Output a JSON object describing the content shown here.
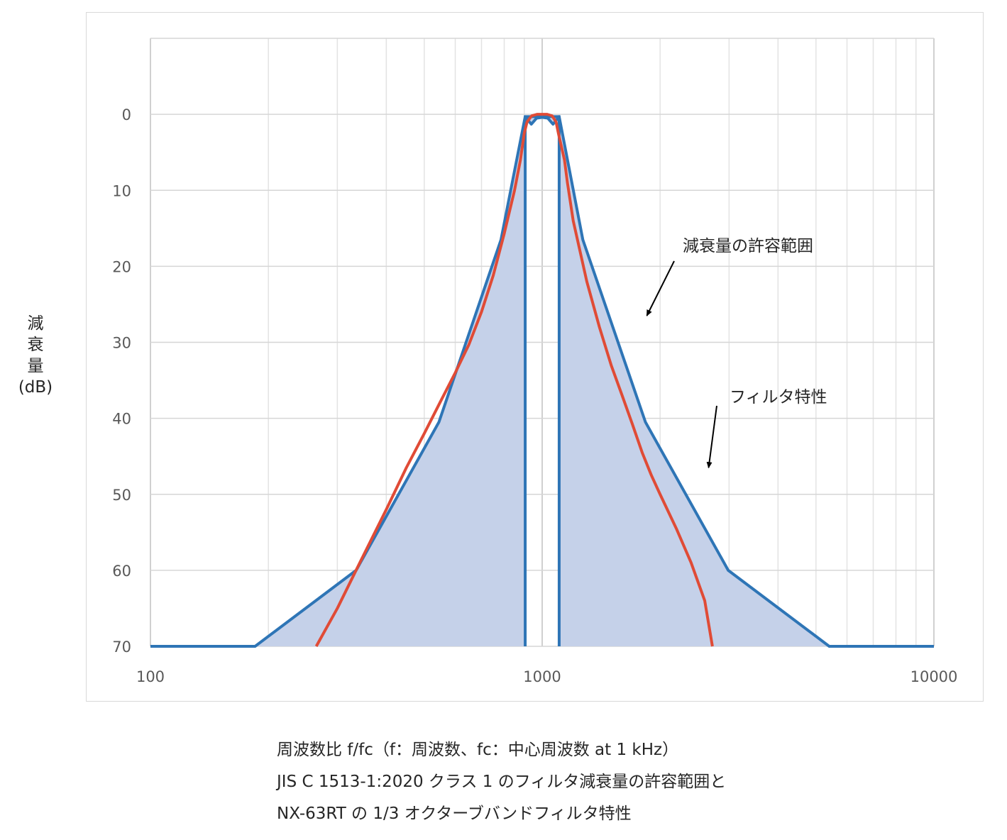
{
  "chart_data": {
    "type": "area",
    "x_scale": "log",
    "xlim": [
      100,
      10000
    ],
    "ylim": [
      -10,
      70
    ],
    "y_inverted": true,
    "grid": true,
    "x_ticks": [
      "100",
      "1000",
      "10000"
    ],
    "y_ticks": [
      "0",
      "10",
      "20",
      "30",
      "40",
      "50",
      "60",
      "70"
    ],
    "ylabel_chars": [
      "減",
      "衰",
      "量",
      "(dB)"
    ],
    "series": [
      {
        "name": "減衰量の許容範囲",
        "color": "#2e75b6",
        "fill": "#c5d1e9",
        "upper": [
          [
            100,
            70
          ],
          [
            185,
            70
          ],
          [
            335,
            60
          ],
          [
            545,
            40.5
          ],
          [
            785,
            16.5
          ],
          [
            905,
            0.3
          ],
          [
            1105,
            0.3
          ],
          [
            1270,
            16.5
          ],
          [
            1835,
            40.5
          ],
          [
            2985,
            60
          ],
          [
            5405,
            70
          ],
          [
            10000,
            70
          ]
        ],
        "inner": [
          [
            905,
            70
          ],
          [
            905,
            0.3
          ],
          [
            938,
            1.3
          ],
          [
            968,
            0.5
          ],
          [
            1000,
            0.4
          ],
          [
            1033,
            0.5
          ],
          [
            1066,
            1.3
          ],
          [
            1105,
            0.3
          ],
          [
            1105,
            70
          ]
        ]
      },
      {
        "name": "フィルタ特性",
        "color": "#e04b36",
        "values": [
          [
            265,
            70
          ],
          [
            300,
            65
          ],
          [
            350,
            58
          ],
          [
            400,
            52
          ],
          [
            450,
            46.5
          ],
          [
            500,
            42
          ],
          [
            550,
            37.8
          ],
          [
            600,
            34
          ],
          [
            650,
            30.3
          ],
          [
            700,
            26
          ],
          [
            750,
            21.2
          ],
          [
            800,
            15.7
          ],
          [
            850,
            10
          ],
          [
            880,
            6
          ],
          [
            900,
            2.5
          ],
          [
            915,
            1
          ],
          [
            940,
            0.2
          ],
          [
            970,
            0
          ],
          [
            1000,
            0
          ],
          [
            1030,
            0
          ],
          [
            1060,
            0.2
          ],
          [
            1085,
            1
          ],
          [
            1100,
            2.5
          ],
          [
            1140,
            6
          ],
          [
            1160,
            9
          ],
          [
            1200,
            14
          ],
          [
            1300,
            22
          ],
          [
            1400,
            28
          ],
          [
            1500,
            33
          ],
          [
            1600,
            37
          ],
          [
            1700,
            40.8
          ],
          [
            1800,
            44.5
          ],
          [
            1900,
            47.5
          ],
          [
            2000,
            50
          ],
          [
            2200,
            54.5
          ],
          [
            2400,
            59
          ],
          [
            2600,
            64
          ],
          [
            2720,
            70
          ]
        ]
      }
    ],
    "annotations": [
      {
        "text": "減衰量の許容範囲",
        "target": [
          1850,
          26.5
        ]
      },
      {
        "text": "フィルタ特性",
        "target": [
          2660,
          46.5
        ]
      }
    ]
  },
  "caption": {
    "line1": "周波数比 f/fc（f：周波数、fc：中心周波数 at 1 kHz）",
    "line2": "JIS C 1513-1:2020 クラス 1 のフィルタ減衰量の許容範囲と",
    "line3": "NX-63RT の 1/3 オクターブバンドフィルタ特性"
  }
}
